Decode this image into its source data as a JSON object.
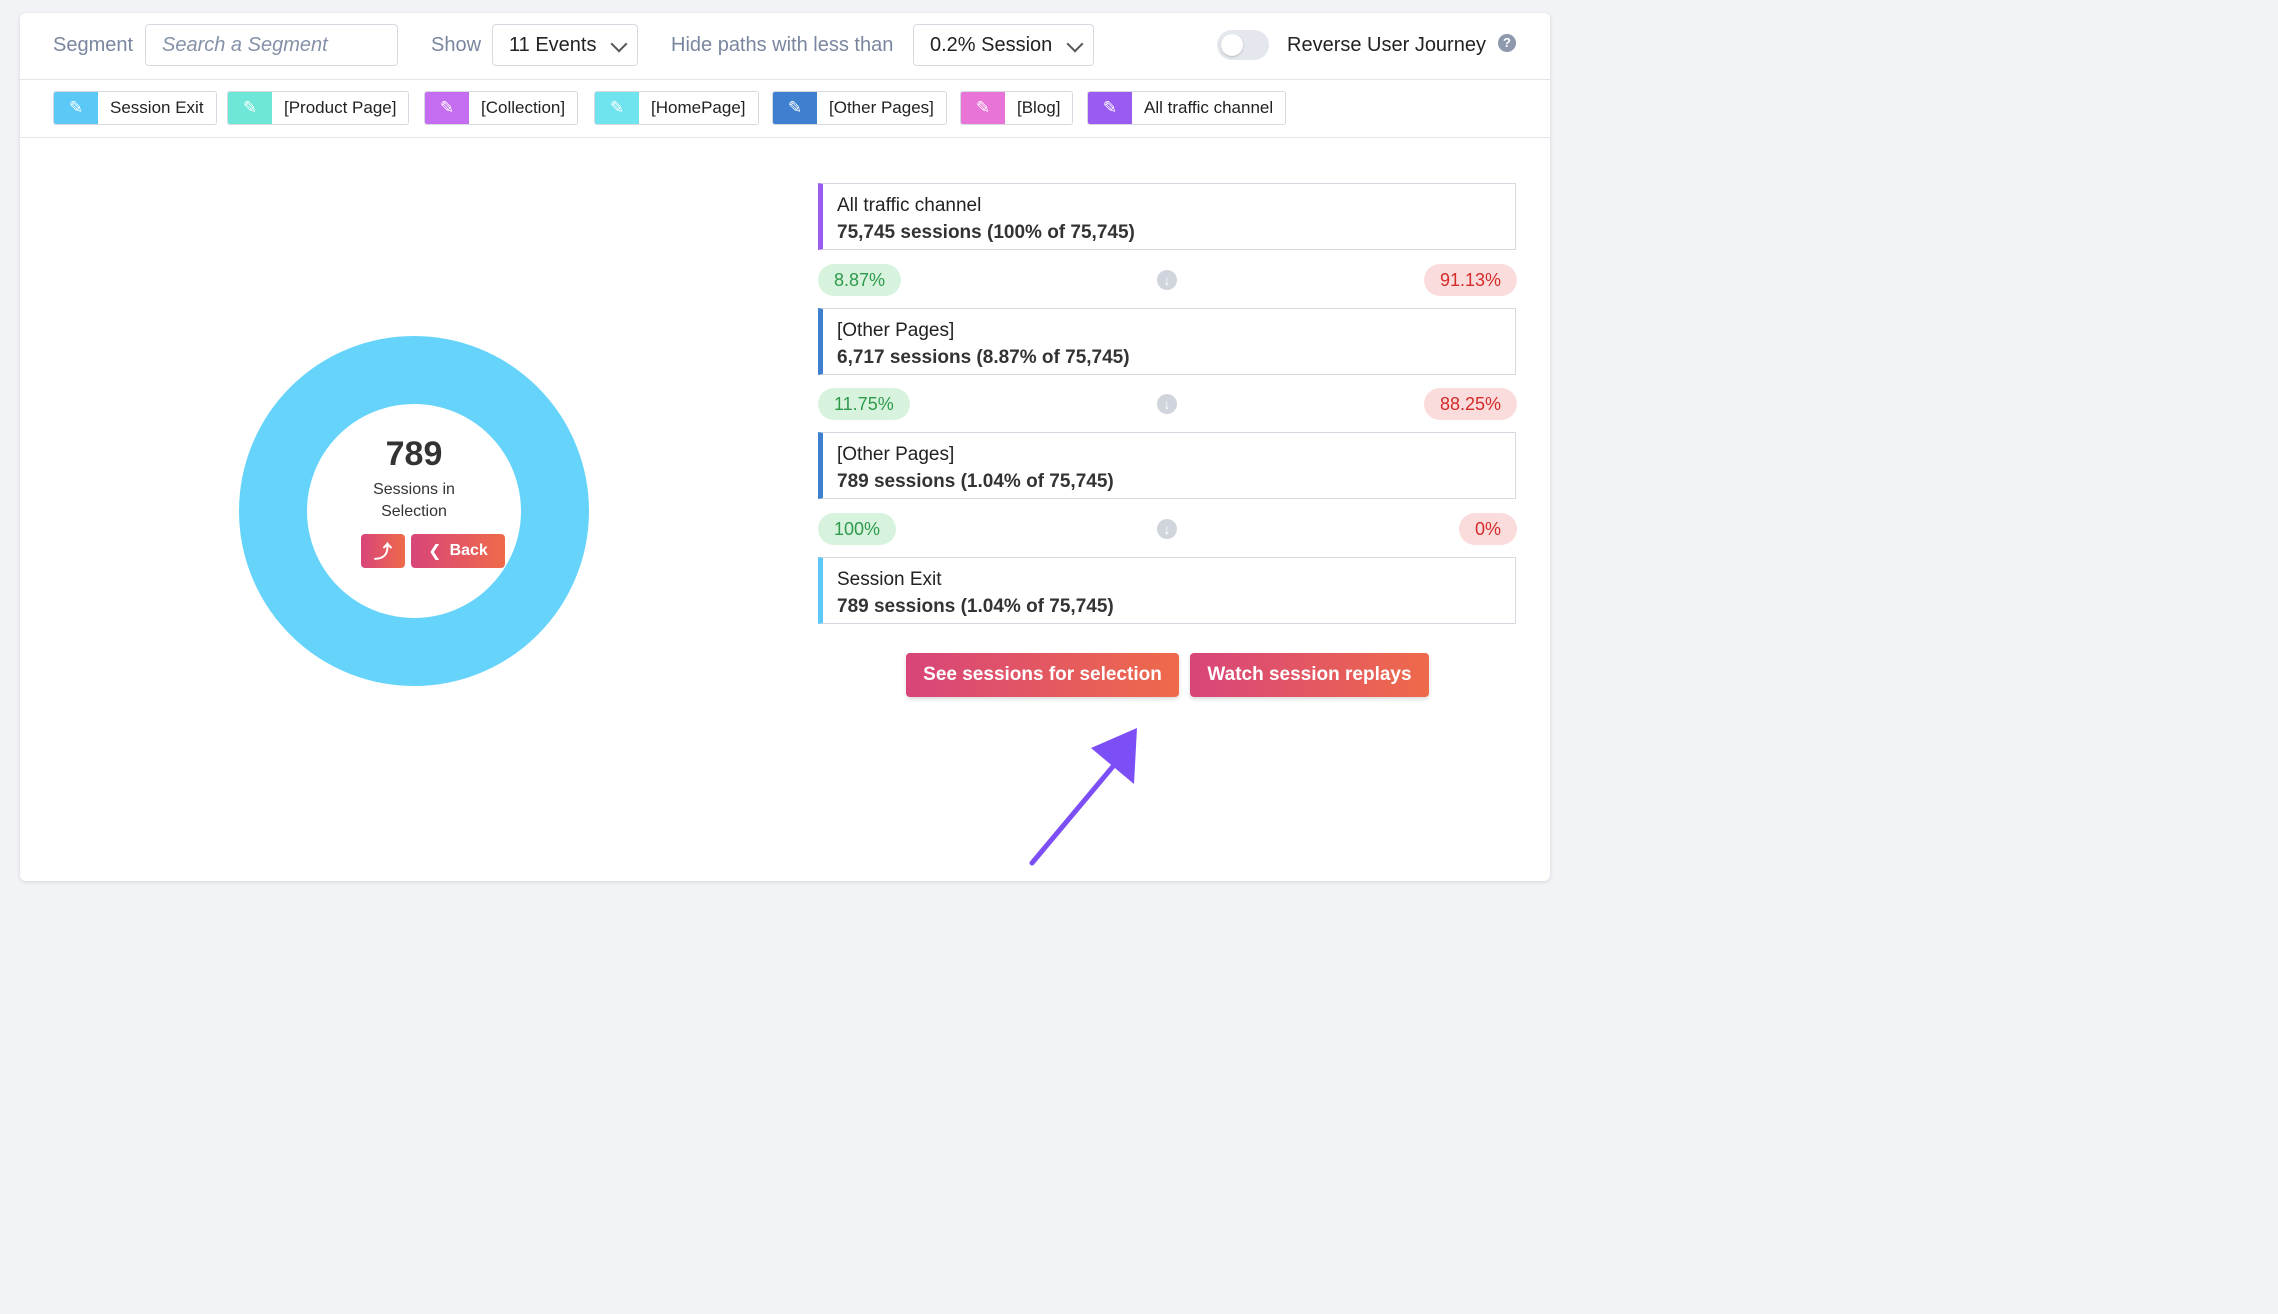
{
  "toolbar": {
    "segment_label": "Segment",
    "segment_placeholder": "Search a Segment",
    "show_label": "Show",
    "events_value": "11 Events",
    "hide_label": "Hide paths with less than",
    "threshold_value": "0.2% Session",
    "reverse_label": "Reverse User Journey",
    "reverse_enabled": false,
    "help_glyph": "?"
  },
  "legend": [
    {
      "label": "Session Exit",
      "color": "#5bc8f5"
    },
    {
      "label": "[Product Page]",
      "color": "#6ee6d8"
    },
    {
      "label": "[Collection]",
      "color": "#c56df0"
    },
    {
      "label": "[HomePage]",
      "color": "#6fe3ee"
    },
    {
      "label": "[Other Pages]",
      "color": "#3f7fcf"
    },
    {
      "label": "[Blog]",
      "color": "#e874d8"
    },
    {
      "label": "All traffic channel",
      "color": "#9a5cf0"
    }
  ],
  "selection": {
    "count": "789",
    "caption": "Sessions in Selection",
    "back_label": "Back",
    "ring_color": "#66d4fa"
  },
  "path": {
    "nodes": [
      {
        "name": "All traffic channel",
        "sessions": "75,745 sessions (100% of 75,745)",
        "color": "#9a5cf0"
      },
      {
        "name": "[Other Pages]",
        "sessions": "6,717 sessions (8.87% of 75,745)",
        "color": "#3f7fcf"
      },
      {
        "name": "[Other Pages]",
        "sessions": "789 sessions (1.04% of 75,745)",
        "color": "#3f7fcf"
      },
      {
        "name": "Session Exit",
        "sessions": "789 sessions (1.04% of 75,745)",
        "color": "#5bc8f5"
      }
    ],
    "transitions": [
      {
        "continue": "8.87%",
        "drop": "91.13%"
      },
      {
        "continue": "11.75%",
        "drop": "88.25%"
      },
      {
        "continue": "100%",
        "drop": "0%"
      }
    ]
  },
  "actions": {
    "see_sessions": "See sessions for selection",
    "watch_replays": "Watch session replays"
  },
  "annotation": {
    "pointer_color": "#7b4ff5"
  }
}
